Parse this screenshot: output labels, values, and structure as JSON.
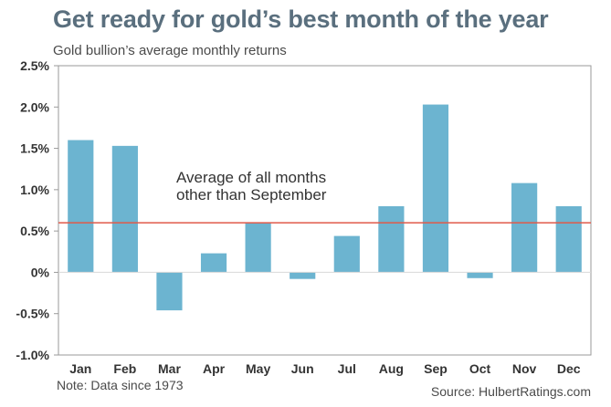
{
  "chart_data": {
    "type": "bar",
    "title": "Get ready for gold’s best month of the year",
    "subtitle": "Gold bullion’s average monthly returns",
    "categories": [
      "Jan",
      "Feb",
      "Mar",
      "Apr",
      "May",
      "Jun",
      "Jul",
      "Aug",
      "Sep",
      "Oct",
      "Nov",
      "Dec"
    ],
    "values": [
      1.6,
      1.53,
      -0.46,
      0.23,
      0.6,
      -0.08,
      0.44,
      0.8,
      2.03,
      -0.07,
      1.08,
      0.8
    ],
    "ylim": [
      -1.0,
      2.5
    ],
    "yticks": [
      2.5,
      2.0,
      1.5,
      1.0,
      0.5,
      0,
      -0.5,
      -1.0
    ],
    "ytick_labels": [
      "2.5%",
      "2.0%",
      "1.5%",
      "1.0%",
      "0.5%",
      "0%",
      "-0.5%",
      "-1.0%"
    ],
    "reference_line": {
      "value": 0.6,
      "label_lines": [
        "Average of all months",
        "other than September"
      ],
      "color": "#e05a4a"
    },
    "bar_color": "#6cb4d0",
    "grid": false,
    "legend": "none"
  },
  "footer": {
    "note": "Note: Data since 1973",
    "source": "Source: HulbertRatings.com"
  }
}
